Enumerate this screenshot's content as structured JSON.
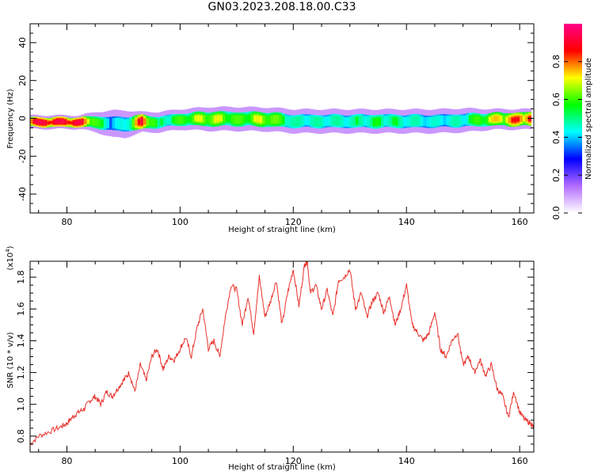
{
  "title": "GN03.2023.208.18.00.C33",
  "chart_data": [
    {
      "type": "heatmap",
      "xlabel": "Height of straight line (km)",
      "ylabel": "Frequency (Hz)",
      "xlim": [
        73.5,
        162.5
      ],
      "ylim": [
        -50,
        50
      ],
      "xticks": [
        80,
        100,
        120,
        140,
        160
      ],
      "yticks": [
        -40,
        -20,
        0,
        20,
        40
      ],
      "colorbar": {
        "label": "Normalized spectral amplitude",
        "range": [
          0,
          1
        ],
        "ticks": [
          "0.0",
          "0.2",
          "0.4",
          "0.6",
          "0.8"
        ],
        "colors": [
          "#ffffff",
          "#b36bff",
          "#0000ff",
          "#00ffff",
          "#00ff00",
          "#ffff00",
          "#ff0000",
          "#ff0088"
        ]
      },
      "ridge": {
        "x": [
          74,
          78,
          82,
          85,
          88,
          90,
          93,
          96,
          100,
          105,
          110,
          115,
          120,
          125,
          130,
          135,
          140,
          145,
          150,
          155,
          160
        ],
        "center_hz": [
          -2,
          -2,
          -2,
          -2,
          -3,
          -3,
          -2,
          -2,
          -0.5,
          -0.3,
          -0.3,
          -0.5,
          -1.5,
          -1.5,
          -1.5,
          -1.5,
          -1.5,
          -1.5,
          -1,
          -0.5,
          -0.5
        ],
        "amplitude": [
          0.95,
          0.95,
          0.95,
          0.6,
          0.4,
          0.45,
          0.9,
          0.5,
          0.6,
          0.7,
          0.6,
          0.7,
          0.5,
          0.5,
          0.5,
          0.55,
          0.5,
          0.45,
          0.5,
          0.7,
          0.85
        ],
        "halfwidth_hz": [
          2,
          2,
          2,
          3,
          4,
          4,
          3,
          3,
          3,
          3.5,
          3.5,
          3.5,
          3.5,
          3.5,
          3.5,
          3.5,
          3.5,
          3.5,
          3.5,
          3,
          3
        ]
      }
    },
    {
      "type": "line",
      "xlabel": "Height of straight line (km)",
      "ylabel": "SNR (10 * v/v)",
      "yscale_label": "(x10",
      "yscale_exp": "4",
      "yscale_close": ")",
      "xlim": [
        73.5,
        162.5
      ],
      "ylim": [
        0.7,
        1.9
      ],
      "xticks": [
        80,
        100,
        120,
        140,
        160
      ],
      "yticks": [
        "0.8",
        "1.0",
        "1.2",
        "1.4",
        "1.6",
        "1.8"
      ],
      "color": "#e8322d",
      "series": [
        {
          "x": [
            73.5,
            75,
            77,
            79,
            80,
            81,
            82,
            83,
            84,
            85,
            86,
            87,
            88,
            89,
            90,
            91,
            92,
            93,
            94,
            95,
            96,
            97,
            98,
            99,
            100,
            101,
            102,
            103,
            104,
            105,
            106,
            107,
            108,
            109,
            110,
            111,
            112,
            113,
            114,
            115,
            116,
            117,
            118,
            119,
            120,
            121,
            122,
            122.5,
            123,
            124,
            125,
            126,
            127,
            128,
            129,
            130,
            131,
            132,
            133,
            134,
            135,
            136,
            137,
            138,
            139,
            140,
            141,
            142,
            143,
            144,
            145,
            146,
            147,
            148,
            149,
            150,
            151,
            152,
            153,
            154,
            155,
            156,
            157,
            158,
            159,
            160,
            161,
            162,
            162.5
          ],
          "y": [
            0.75,
            0.8,
            0.83,
            0.86,
            0.88,
            0.92,
            0.95,
            0.97,
            1.02,
            1.05,
            1.0,
            1.08,
            1.05,
            1.1,
            1.15,
            1.2,
            1.08,
            1.25,
            1.15,
            1.3,
            1.35,
            1.22,
            1.3,
            1.28,
            1.35,
            1.42,
            1.3,
            1.48,
            1.6,
            1.35,
            1.4,
            1.3,
            1.55,
            1.75,
            1.72,
            1.5,
            1.68,
            1.45,
            1.8,
            1.55,
            1.65,
            1.78,
            1.5,
            1.7,
            1.85,
            1.62,
            1.88,
            1.9,
            1.7,
            1.75,
            1.6,
            1.72,
            1.55,
            1.78,
            1.8,
            1.85,
            1.6,
            1.7,
            1.55,
            1.65,
            1.7,
            1.58,
            1.68,
            1.5,
            1.6,
            1.75,
            1.5,
            1.45,
            1.4,
            1.45,
            1.58,
            1.35,
            1.3,
            1.4,
            1.45,
            1.25,
            1.3,
            1.2,
            1.28,
            1.18,
            1.25,
            1.1,
            1.05,
            0.92,
            1.08,
            0.95,
            0.9,
            0.88,
            0.85
          ]
        }
      ]
    }
  ]
}
